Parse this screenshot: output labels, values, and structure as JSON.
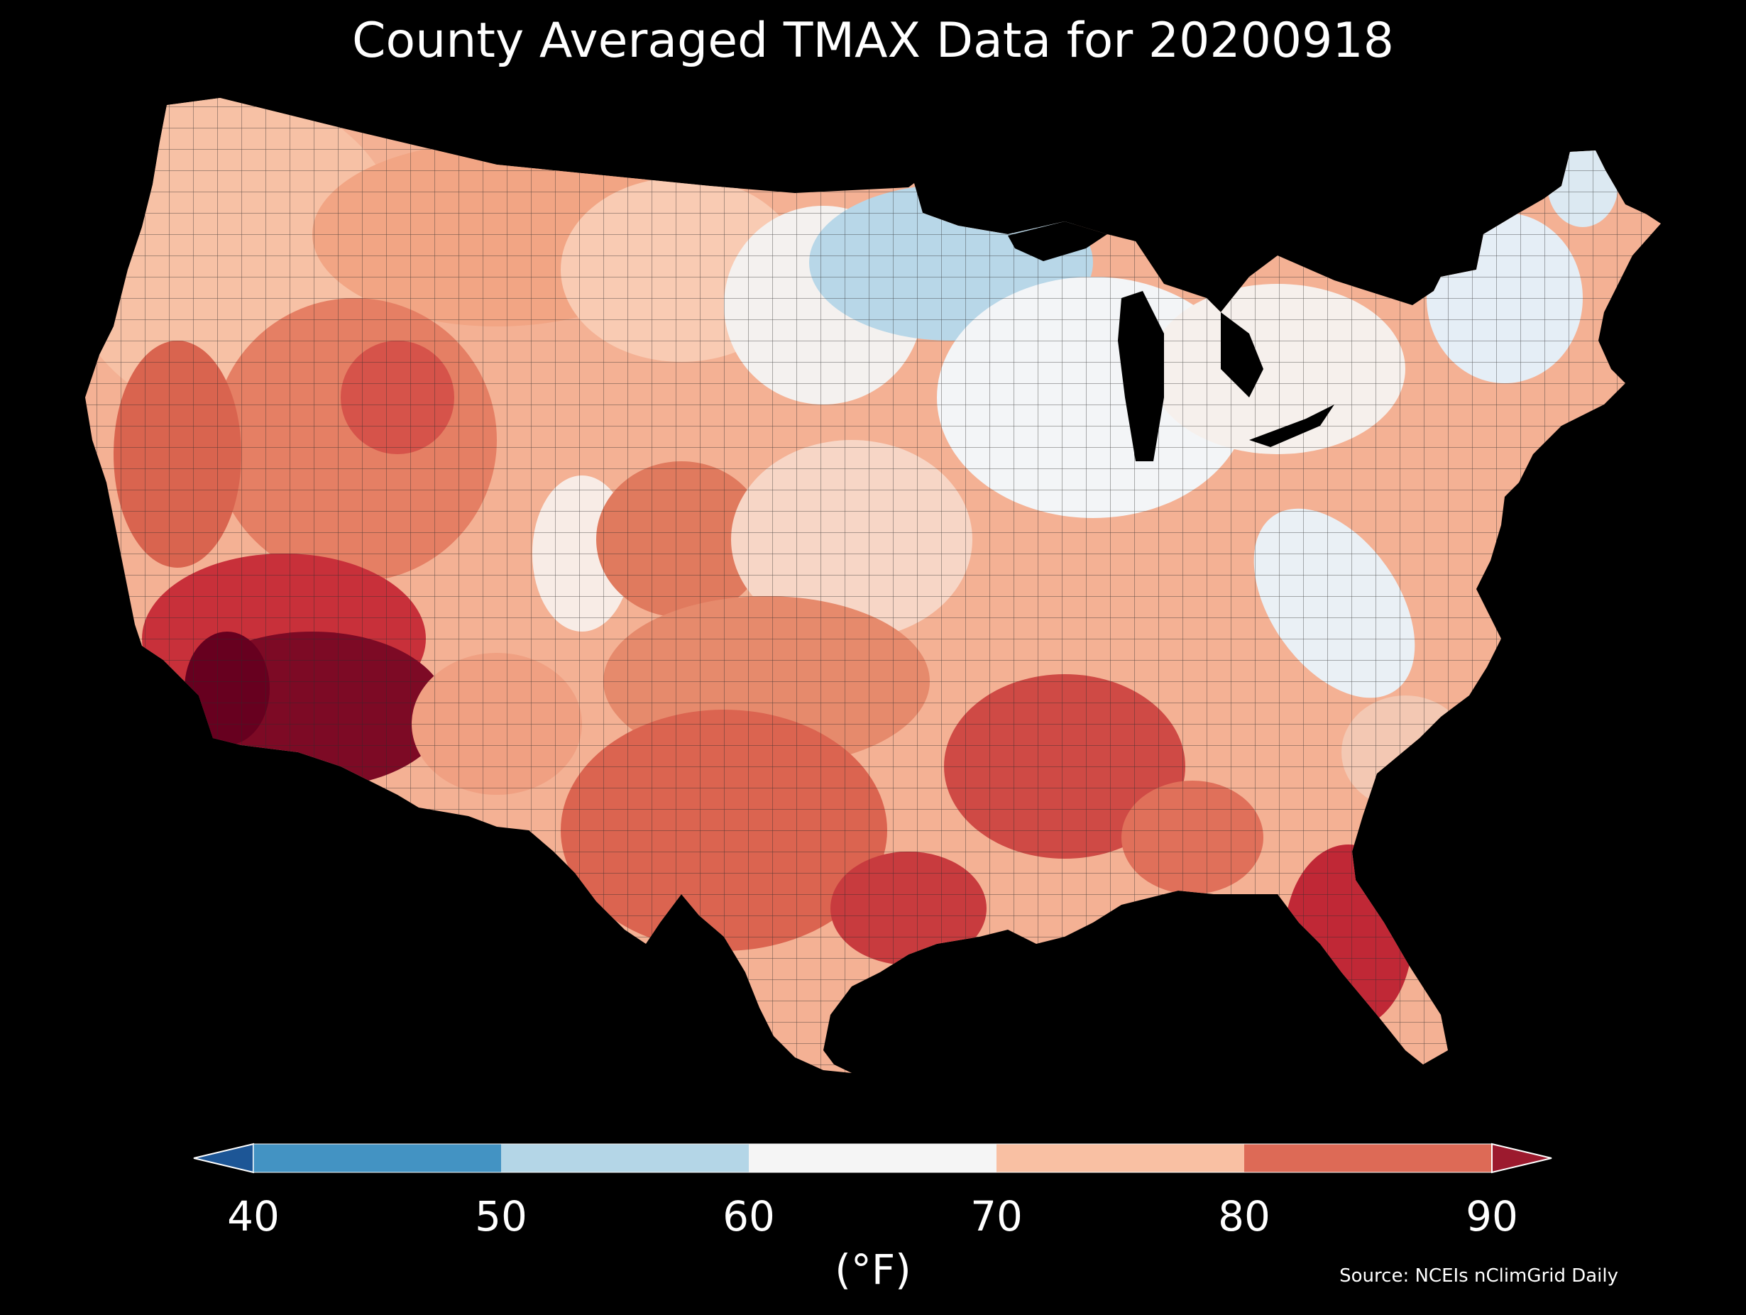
{
  "title": "County Averaged TMAX Data for 20200918",
  "colorbar": {
    "units": "(°F)",
    "ticks": [
      "40",
      "50",
      "60",
      "70",
      "80",
      "90"
    ],
    "bins": [
      {
        "range": [
          40,
          50
        ],
        "color": "#4393c3"
      },
      {
        "range": [
          50,
          60
        ],
        "color": "#b4d6e7"
      },
      {
        "range": [
          60,
          70
        ],
        "color": "#f5f5f5"
      },
      {
        "range": [
          70,
          80
        ],
        "color": "#f9c0a3"
      },
      {
        "range": [
          80,
          90
        ],
        "color": "#dd6a56"
      }
    ],
    "under_color": "#1d5696",
    "over_color": "#9c1a2e",
    "extend": "both"
  },
  "source": "Source: NCEIs nClimGrid Daily",
  "map": {
    "region": "Contiguous United States",
    "units": "counties",
    "background": "#000000",
    "water_color": "#000000",
    "county_border_color": "#222222",
    "regional_values": [
      {
        "region": "Desert Southwest (AZ / SE CA)",
        "value_bin": ">90",
        "color": "#67001f"
      },
      {
        "region": "Southern Nevada / Utah SW",
        "value_bin": "80-90+",
        "color": "#b2182b"
      },
      {
        "region": "California Central Valley",
        "value_bin": "80-90",
        "color": "#c94741"
      },
      {
        "region": "Great Basin",
        "value_bin": "80-90",
        "color": "#dd6a56"
      },
      {
        "region": "Pacific Northwest",
        "value_bin": "70-80",
        "color": "#f9c0a3"
      },
      {
        "region": "Northern Plains",
        "value_bin": "70-80",
        "color": "#f7b799"
      },
      {
        "region": "Upper Midwest (MN / WI / MI UP)",
        "value_bin": "50-60",
        "color": "#b4d6e7"
      },
      {
        "region": "Ohio Valley / Great Lakes",
        "value_bin": "60-70",
        "color": "#f5f5f5"
      },
      {
        "region": "Appalachians",
        "value_bin": "60-70",
        "color": "#e8eef4"
      },
      {
        "region": "New England / northern Maine",
        "value_bin": "50-60",
        "color": "#dce9f2"
      },
      {
        "region": "Southern Plains / Texas",
        "value_bin": "80-90",
        "color": "#dd6a56"
      },
      {
        "region": "Gulf Coast (LA / MS / AL)",
        "value_bin": "80-90",
        "color": "#c94741"
      },
      {
        "region": "Florida peninsula",
        "value_bin": "80-90+",
        "color": "#c02836"
      },
      {
        "region": "Colorado Rockies",
        "value_bin": "60-70",
        "color": "#f5f5f5"
      },
      {
        "region": "Kansas / Oklahoma",
        "value_bin": "70-80",
        "color": "#eb9172"
      }
    ]
  }
}
